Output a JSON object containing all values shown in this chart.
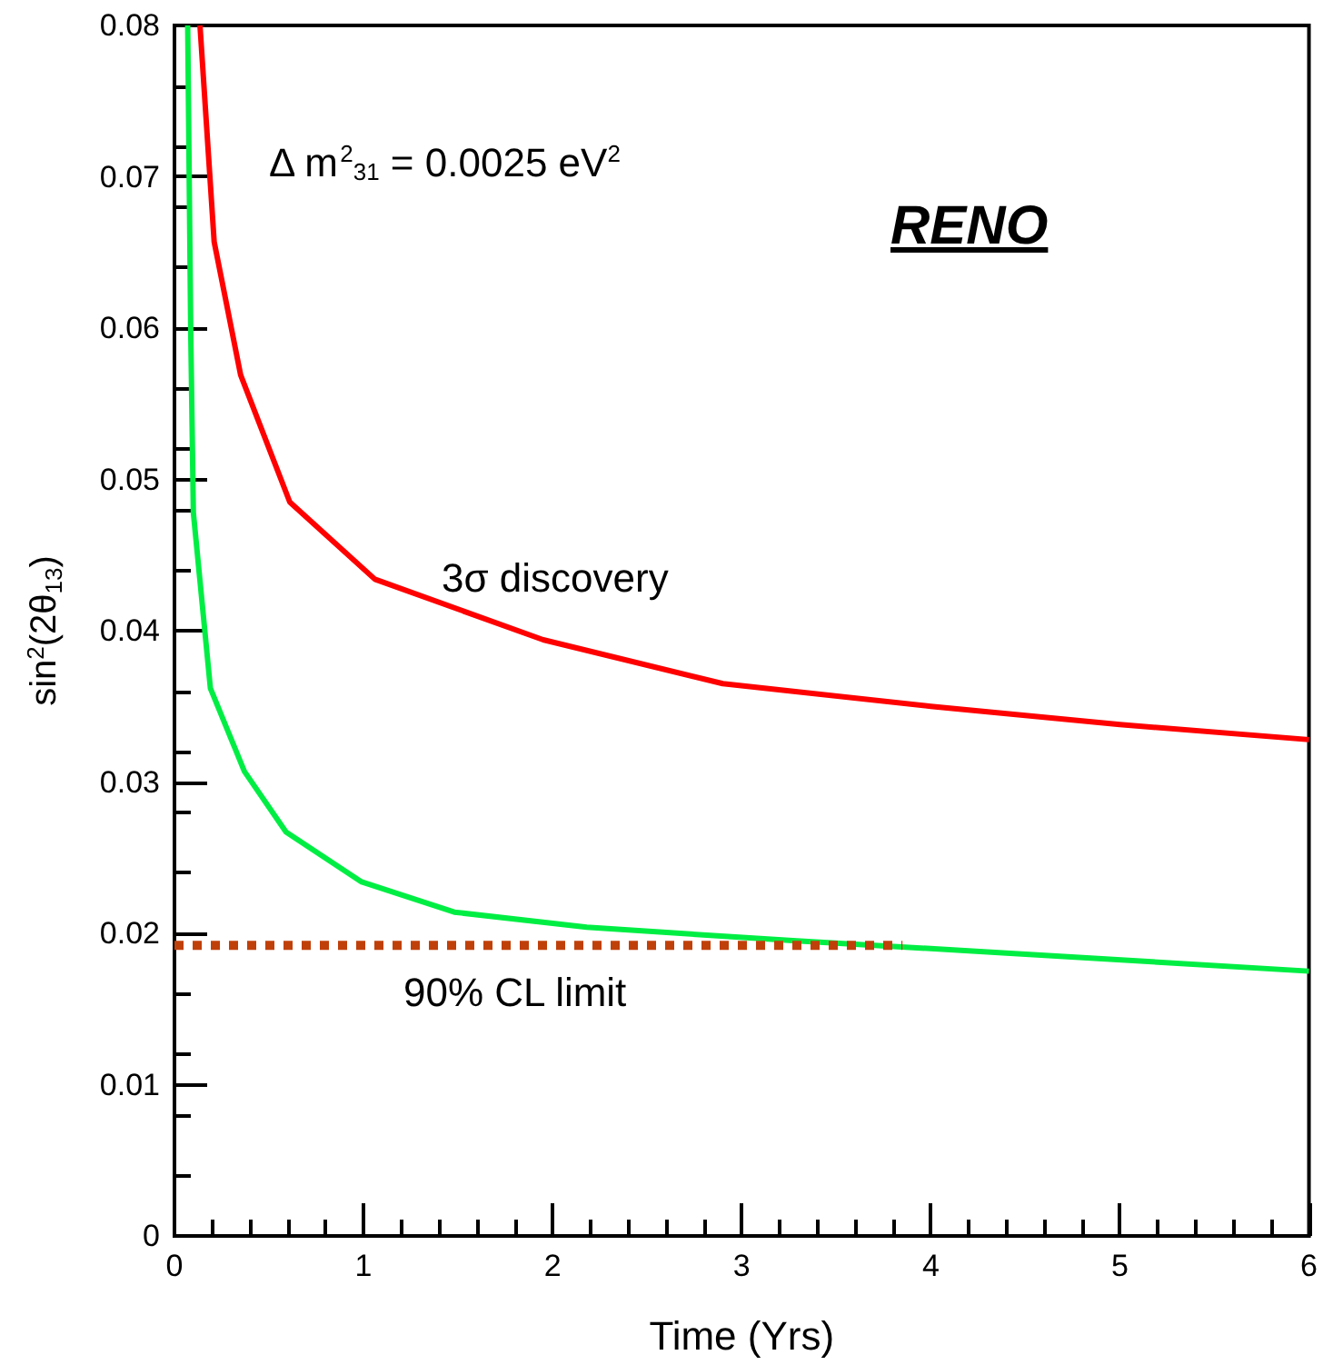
{
  "chart_data": {
    "type": "line",
    "xlabel": "Time (Yrs)",
    "ylabel": "sin$^{2}$(2θ$_{13}$)",
    "xlim": [
      0,
      6
    ],
    "xticks": [
      0,
      1,
      2,
      3,
      4,
      5,
      6
    ],
    "ylim": [
      0,
      0.08
    ],
    "yticks": [
      0,
      0.01,
      0.02,
      0.03,
      0.04,
      0.05,
      0.06,
      0.07,
      0.08
    ],
    "grid": false,
    "marker": "none",
    "series": [
      {
        "color": "#ff0000",
        "x": [
          0.135,
          0.21,
          0.35,
          0.61,
          1.06,
          1.95,
          2.9,
          4,
          5,
          6
        ],
        "values": [
          0.08,
          0.0657,
          0.0569,
          0.0485,
          0.0434,
          0.0394,
          0.0365,
          0.035,
          0.0338,
          0.0328
        ]
      },
      {
        "color": "#00ee44",
        "x": [
          0.07,
          0.086,
          0.1,
          0.19,
          0.37,
          0.59,
          0.99,
          1.48,
          2.18,
          3.29,
          4.4,
          6
        ],
        "values": [
          0.08,
          0.0598,
          0.0478,
          0.0362,
          0.0307,
          0.0267,
          0.0234,
          0.0214,
          0.0204,
          0.0195,
          0.0187,
          0.0175
        ]
      },
      {
        "color": "#c0400a",
        "line_style": "dotted",
        "x": [
          0,
          3.85
        ],
        "values": [
          0.0192,
          0.0192
        ]
      }
    ],
    "annotations": [
      "RENO",
      "Δ m$^{2}$$_{31}$ = 0.0025 eV$^{2}$",
      "3σ discovery",
      "90% CL limit"
    ]
  }
}
